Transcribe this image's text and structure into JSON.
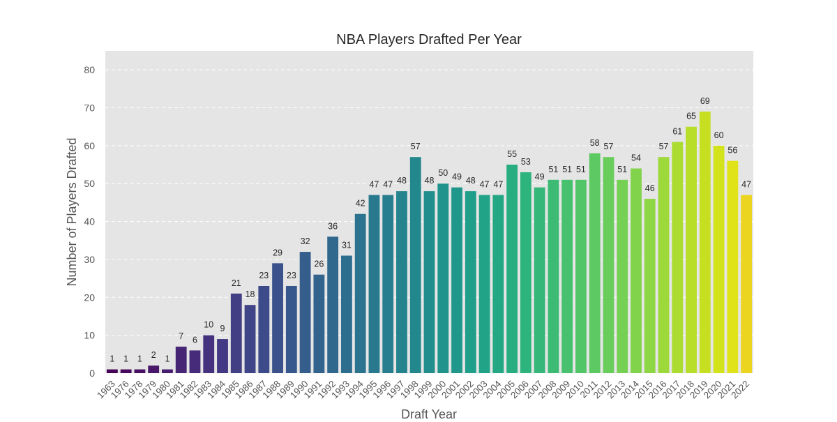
{
  "chart_data": {
    "type": "bar",
    "title": "NBA Players Drafted Per Year",
    "xlabel": "Draft Year",
    "ylabel": "Number of Players Drafted",
    "ylim": [
      0,
      85
    ],
    "yticks": [
      0,
      10,
      20,
      30,
      40,
      50,
      60,
      70,
      80
    ],
    "grid": true,
    "colormap": "viridis",
    "background_color": "#e5e5e5",
    "categories": [
      "1963",
      "1976",
      "1978",
      "1979",
      "1980",
      "1981",
      "1982",
      "1983",
      "1984",
      "1985",
      "1986",
      "1987",
      "1988",
      "1989",
      "1990",
      "1991",
      "1992",
      "1993",
      "1994",
      "1995",
      "1996",
      "1997",
      "1998",
      "1999",
      "2000",
      "2001",
      "2002",
      "2003",
      "2004",
      "2005",
      "2006",
      "2007",
      "2008",
      "2009",
      "2010",
      "2011",
      "2012",
      "2013",
      "2014",
      "2015",
      "2016",
      "2017",
      "2018",
      "2019",
      "2020",
      "2021",
      "2022"
    ],
    "values": [
      1,
      1,
      1,
      2,
      1,
      7,
      6,
      10,
      9,
      21,
      18,
      23,
      29,
      23,
      32,
      26,
      36,
      31,
      42,
      47,
      47,
      48,
      57,
      48,
      50,
      49,
      48,
      47,
      47,
      55,
      53,
      49,
      51,
      51,
      51,
      58,
      57,
      51,
      54,
      46,
      57,
      61,
      65,
      69,
      60,
      56,
      47
    ],
    "bar_colors": [
      "#450457",
      "#46095d",
      "#471063",
      "#481769",
      "#471d6f",
      "#472575",
      "#462b7a",
      "#45327f",
      "#433883",
      "#423f85",
      "#404588",
      "#3d4b8a",
      "#3a518b",
      "#37588c",
      "#355e8d",
      "#32638d",
      "#30688d",
      "#2d6e8e",
      "#2b738e",
      "#29798e",
      "#277e8e",
      "#25838e",
      "#23888e",
      "#228d8d",
      "#20938c",
      "#1f988b",
      "#1f9e89",
      "#20a386",
      "#23a883",
      "#28ad80",
      "#2db37c",
      "#35b779",
      "#3dbb74",
      "#47c16e",
      "#52c569",
      "#5dc962",
      "#69cd5b",
      "#75d054",
      "#82d34c",
      "#8fd644",
      "#9dd93b",
      "#abdc32",
      "#b8de29",
      "#c6e021",
      "#d2e21b",
      "#e0e318",
      "#ecd521"
    ]
  }
}
